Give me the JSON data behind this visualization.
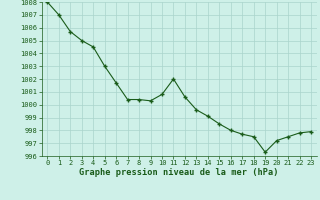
{
  "x": [
    0,
    1,
    2,
    3,
    4,
    5,
    6,
    7,
    8,
    9,
    10,
    11,
    12,
    13,
    14,
    15,
    16,
    17,
    18,
    19,
    20,
    21,
    22,
    23
  ],
  "y": [
    1008,
    1007,
    1005.7,
    1005,
    1004.5,
    1003,
    1001.7,
    1000.4,
    1000.4,
    1000.3,
    1000.8,
    1002,
    1000.6,
    999.6,
    999.1,
    998.5,
    998.0,
    997.7,
    997.5,
    996.3,
    997.2,
    997.5,
    997.8,
    997.9
  ],
  "line_color": "#1a5c1a",
  "marker_color": "#1a5c1a",
  "bg_color": "#cef0e8",
  "grid_color": "#aad4cc",
  "axis_label": "Graphe pression niveau de la mer (hPa)",
  "ylim_min": 996,
  "ylim_max": 1008,
  "xlim_min": -0.5,
  "xlim_max": 23.5,
  "yticks": [
    996,
    997,
    998,
    999,
    1000,
    1001,
    1002,
    1003,
    1004,
    1005,
    1006,
    1007,
    1008
  ],
  "xticks": [
    0,
    1,
    2,
    3,
    4,
    5,
    6,
    7,
    8,
    9,
    10,
    11,
    12,
    13,
    14,
    15,
    16,
    17,
    18,
    19,
    20,
    21,
    22,
    23
  ],
  "tick_fontsize": 5.0,
  "label_fontsize": 6.2,
  "label_color": "#1a5c1a",
  "tick_color": "#1a5c1a"
}
